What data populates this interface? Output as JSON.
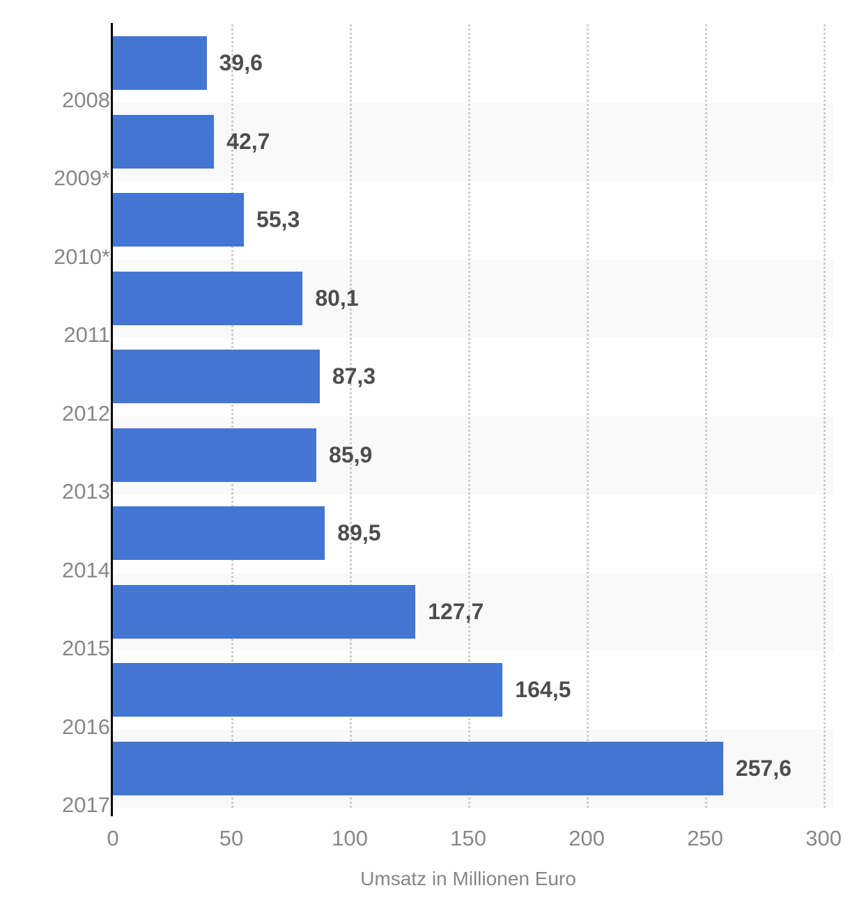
{
  "chart_data": {
    "type": "bar",
    "orientation": "horizontal",
    "title": "",
    "xlabel": "Umsatz in Millionen Euro",
    "ylabel": "",
    "categories": [
      "2008",
      "2009*",
      "2010*",
      "2011",
      "2012",
      "2013",
      "2014",
      "2015",
      "2016",
      "2017"
    ],
    "values": [
      39.6,
      42.7,
      55.3,
      80.1,
      87.3,
      85.9,
      89.5,
      127.7,
      164.5,
      257.6
    ],
    "value_labels": [
      "39,6",
      "42,7",
      "55,3",
      "80,1",
      "87,3",
      "85,9",
      "89,5",
      "127,7",
      "164,5",
      "257,6"
    ],
    "x_ticks": [
      0,
      50,
      100,
      150,
      200,
      250,
      300
    ],
    "xlim": [
      0,
      300
    ],
    "grid": "vertical-dotted",
    "legend": "none",
    "row_striping": "alternate-light-gray",
    "colors": {
      "bar": "#4376d3",
      "stripe": "#f9f9f9",
      "grid": "#cccccc",
      "axis_line": "#000000",
      "category_label": "#878787",
      "value_label": "#4d4d4d",
      "tick_label": "#878787",
      "axis_title": "#878787",
      "background": "#ffffff"
    }
  }
}
